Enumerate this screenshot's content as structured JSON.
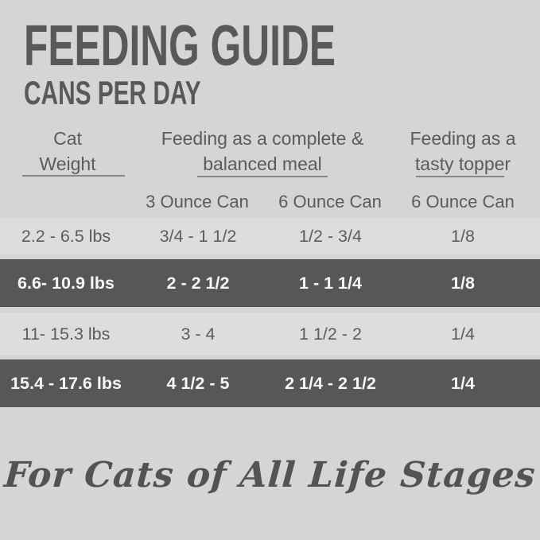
{
  "title": "FEEDING GUIDE",
  "subtitle": "CANS PER DAY",
  "colors": {
    "background": "#d4d5d6",
    "text": "#58595b",
    "light_row_bg": "#dcddde",
    "dark_row_bg": "#565759",
    "dark_row_text": "#f7f7f8"
  },
  "header": {
    "col_weight": {
      "line1": "Cat",
      "line2": "Weight"
    },
    "col_complete": {
      "line1": "Feeding as a complete &",
      "line2": "balanced meal"
    },
    "col_topper": {
      "line1": "Feeding as a",
      "line2": "tasty topper"
    },
    "subheaders": [
      "3 Ounce Can",
      "6 Ounce Can",
      "6 Ounce Can"
    ]
  },
  "chart_data": {
    "type": "table",
    "title": "FEEDING GUIDE",
    "subtitle": "CANS PER DAY",
    "column_groups": [
      "Cat Weight",
      "Feeding as a complete & balanced meal",
      "Feeding as a tasty topper"
    ],
    "columns": [
      "Cat Weight",
      "3 Ounce Can",
      "6 Ounce Can",
      "6 Ounce Can"
    ],
    "rows": [
      [
        "2.2 - 6.5 lbs",
        "3/4 - 1 1/2",
        "1/2 - 3/4",
        "1/8"
      ],
      [
        "6.6- 10.9 lbs",
        "2 - 2 1/2",
        "1 - 1 1/4",
        "1/8"
      ],
      [
        "11- 15.3 lbs",
        "3 - 4",
        "1 1/2 - 2",
        "1/4"
      ],
      [
        "15.4 - 17.6 lbs",
        "4 1/2 - 5",
        "2 1/4 - 2 1/2",
        "1/4"
      ]
    ],
    "row_styles": [
      "light",
      "dark",
      "light",
      "dark"
    ]
  },
  "footer": {
    "script_text": "For Cats of All Life Stages"
  }
}
